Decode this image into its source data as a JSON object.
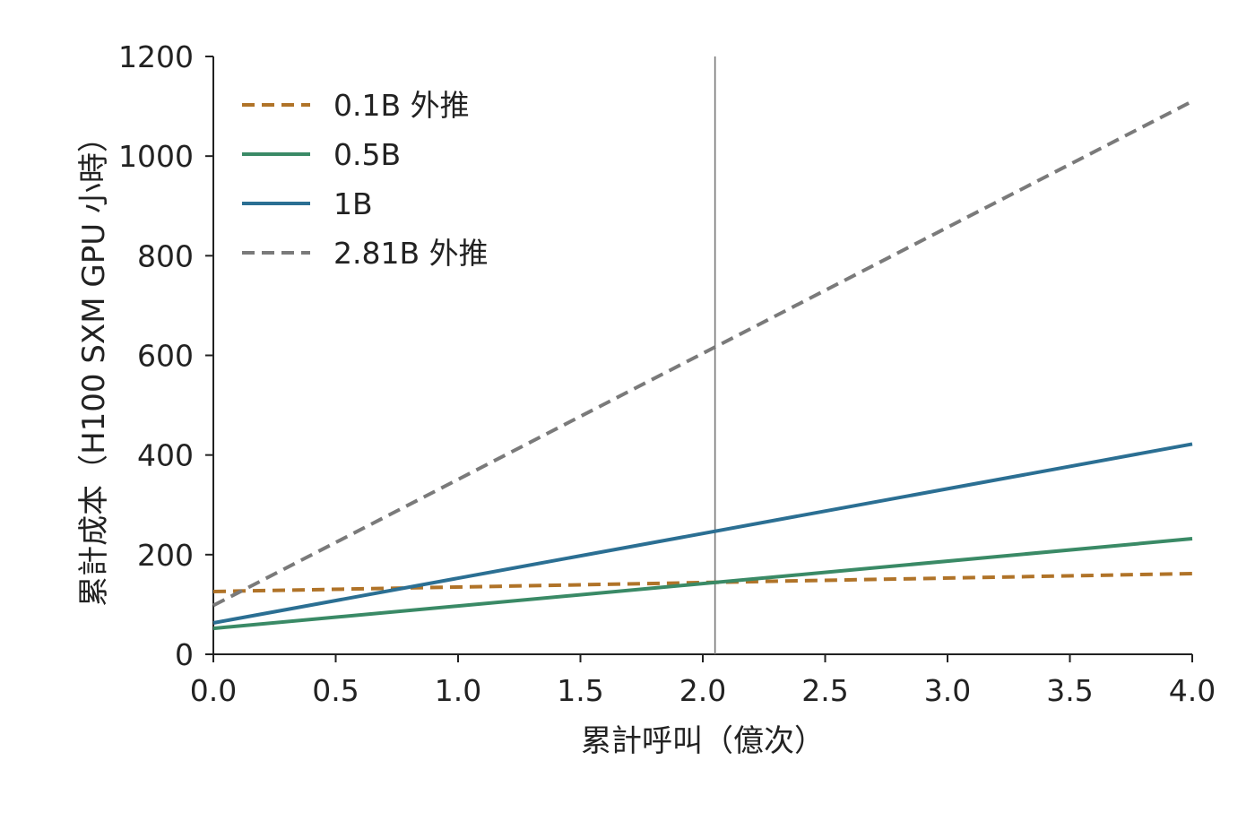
{
  "chart_data": {
    "type": "line",
    "title": "",
    "xlabel": "累計呼叫（億次）",
    "ylabel": "累計成本（H100 SXM GPU 小時）",
    "xlim": [
      0,
      4
    ],
    "ylim": [
      0,
      1200
    ],
    "x_ticks": [
      "0.0",
      "0.5",
      "1.0",
      "1.5",
      "2.0",
      "2.5",
      "3.0",
      "3.5",
      "4.0"
    ],
    "y_ticks": [
      "0",
      "200",
      "400",
      "600",
      "800",
      "1000",
      "1200"
    ],
    "x_tick_values": [
      0,
      0.5,
      1.0,
      1.5,
      2.0,
      2.5,
      3.0,
      3.5,
      4.0
    ],
    "y_tick_values": [
      0,
      200,
      400,
      600,
      800,
      1000,
      1200
    ],
    "grid": false,
    "legend_position": "top-left",
    "vertical_reference_line": {
      "x": 2.05,
      "color": "#777777"
    },
    "series": [
      {
        "name": "0.1B 外推",
        "color": "#b07328",
        "dashed": true,
        "x": [
          0,
          4
        ],
        "y": [
          126,
          162
        ]
      },
      {
        "name": "0.5B",
        "color": "#3a8a66",
        "dashed": false,
        "x": [
          0,
          4
        ],
        "y": [
          52,
          232
        ]
      },
      {
        "name": "1B",
        "color": "#2b6f93",
        "dashed": false,
        "x": [
          0,
          4
        ],
        "y": [
          63,
          422
        ]
      },
      {
        "name": "2.81B 外推",
        "color": "#7a7a7a",
        "dashed": true,
        "x": [
          0,
          4
        ],
        "y": [
          98,
          1110
        ]
      }
    ]
  }
}
